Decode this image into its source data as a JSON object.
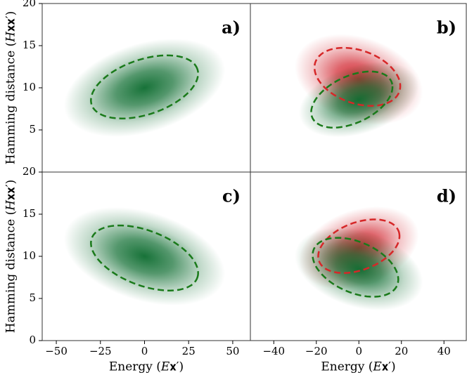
{
  "chart_data": [
    {
      "type": "density",
      "label": "a)",
      "ylabel": "Hamming distance (𝐻𝐱𝐱′)",
      "xlim": [
        -58,
        60
      ],
      "ylim": [
        0,
        20
      ],
      "yticks": [
        5,
        10,
        15,
        20
      ],
      "clouds": [
        {
          "color": "#0b6b2e",
          "center": [
            0,
            10
          ],
          "axis1": [
            45,
            3
          ],
          "axis2": [
            -8,
            5
          ]
        }
      ],
      "ellipses": [
        {
          "color": "#1a7a1a",
          "center": [
            0,
            10.1
          ],
          "axis1": [
            30,
            2.1
          ],
          "axis2": [
            -4.8,
            3.1
          ]
        }
      ]
    },
    {
      "type": "density",
      "label": "b)",
      "xlim": [
        -51,
        50.5
      ],
      "ylim": [
        0,
        20
      ],
      "clouds": [
        {
          "color": "#d0202a",
          "center": [
            0,
            11
          ],
          "axis1": [
            30,
            -2
          ],
          "axis2": [
            3,
            5
          ]
        },
        {
          "color": "#0b6b2e",
          "center": [
            0,
            8.6
          ],
          "axis1": [
            28,
            2
          ],
          "axis2": [
            -3,
            4
          ]
        }
      ],
      "ellipses": [
        {
          "color": "#d62728",
          "center": [
            -0.7,
            11.3
          ],
          "axis1": [
            20,
            -1.5
          ],
          "axis2": [
            2.5,
            3.1
          ]
        },
        {
          "color": "#1a7a1a",
          "center": [
            -3.3,
            8.6
          ],
          "axis1": [
            19,
            1.8
          ],
          "axis2": [
            -2,
            2.8
          ]
        }
      ]
    },
    {
      "type": "density",
      "label": "c)",
      "ylabel": "Hamming distance (𝐻𝐱𝐱′)",
      "xlabel": "Energy (𝐸𝐱′)",
      "xlim": [
        -58,
        60
      ],
      "ylim": [
        0,
        20
      ],
      "yticks": [
        0,
        5,
        10,
        15,
        20
      ],
      "xticks": [
        {
          "value": -50,
          "label": "−50"
        },
        {
          "value": -25,
          "label": "−25"
        },
        0,
        25,
        50
      ],
      "clouds": [
        {
          "color": "#0b6b2e",
          "center": [
            0,
            10
          ],
          "axis1": [
            45,
            -3
          ],
          "axis2": [
            8,
            5
          ]
        }
      ],
      "ellipses": [
        {
          "color": "#1a7a1a",
          "center": [
            0,
            9.8
          ],
          "axis1": [
            30,
            -2.3
          ],
          "axis2": [
            4.8,
            3.1
          ]
        }
      ]
    },
    {
      "type": "density",
      "label": "d)",
      "xlabel": "Energy (𝐸𝐱′)",
      "xlim": [
        -51,
        50.5
      ],
      "ylim": [
        0,
        20
      ],
      "xticks": [
        {
          "value": -40,
          "label": "−40"
        },
        {
          "value": -20,
          "label": "−20"
        },
        0,
        20,
        40
      ],
      "clouds": [
        {
          "color": "#d0202a",
          "center": [
            0,
            11
          ],
          "axis1": [
            28,
            2
          ],
          "axis2": [
            -3,
            4.5
          ]
        },
        {
          "color": "#0b6b2e",
          "center": [
            0,
            8.5
          ],
          "axis1": [
            30,
            -2
          ],
          "axis2": [
            3,
            4.5
          ]
        }
      ],
      "ellipses": [
        {
          "color": "#d62728",
          "center": [
            0,
            11.2
          ],
          "axis1": [
            19,
            1.5
          ],
          "axis2": [
            -2,
            2.8
          ]
        },
        {
          "color": "#1a7a1a",
          "center": [
            -1.6,
            8.7
          ],
          "axis1": [
            20,
            -1.8
          ],
          "axis2": [
            2.3,
            3
          ]
        }
      ]
    }
  ]
}
